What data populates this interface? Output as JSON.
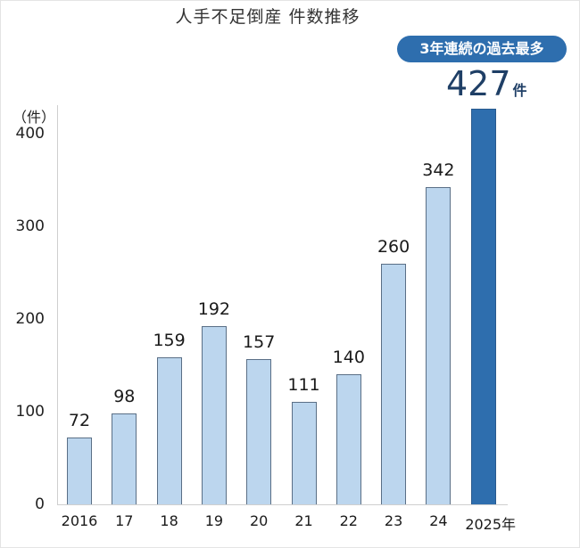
{
  "title": "人手不足倒産 件数推移",
  "badge": "3年連続の過去最多",
  "highlight": {
    "value": "427",
    "unit": "件"
  },
  "y_unit": "（件）",
  "y_ticks": [
    "0",
    "100",
    "200",
    "300",
    "400"
  ],
  "colors": {
    "bar": "#bcd6ee",
    "bar_highlight": "#2e6eae",
    "badge": "#2e6eae",
    "highlight_text": "#1f3f66"
  },
  "chart_data": {
    "type": "bar",
    "title": "人手不足倒産 件数推移",
    "categories": [
      "2016",
      "17",
      "18",
      "19",
      "20",
      "21",
      "22",
      "23",
      "24",
      "2025年"
    ],
    "values": [
      72,
      98,
      159,
      192,
      157,
      111,
      140,
      260,
      342,
      427
    ],
    "value_labels": [
      "72",
      "98",
      "159",
      "192",
      "157",
      "111",
      "140",
      "260",
      "342",
      ""
    ],
    "xlabel": "",
    "ylabel": "（件）",
    "ylim": [
      0,
      400
    ],
    "y_ticks": [
      0,
      100,
      200,
      300,
      400
    ],
    "grid": false,
    "legend": null,
    "annotations": [
      "3年連続の過去最多",
      "427件"
    ],
    "highlighted_category": "2025年"
  }
}
